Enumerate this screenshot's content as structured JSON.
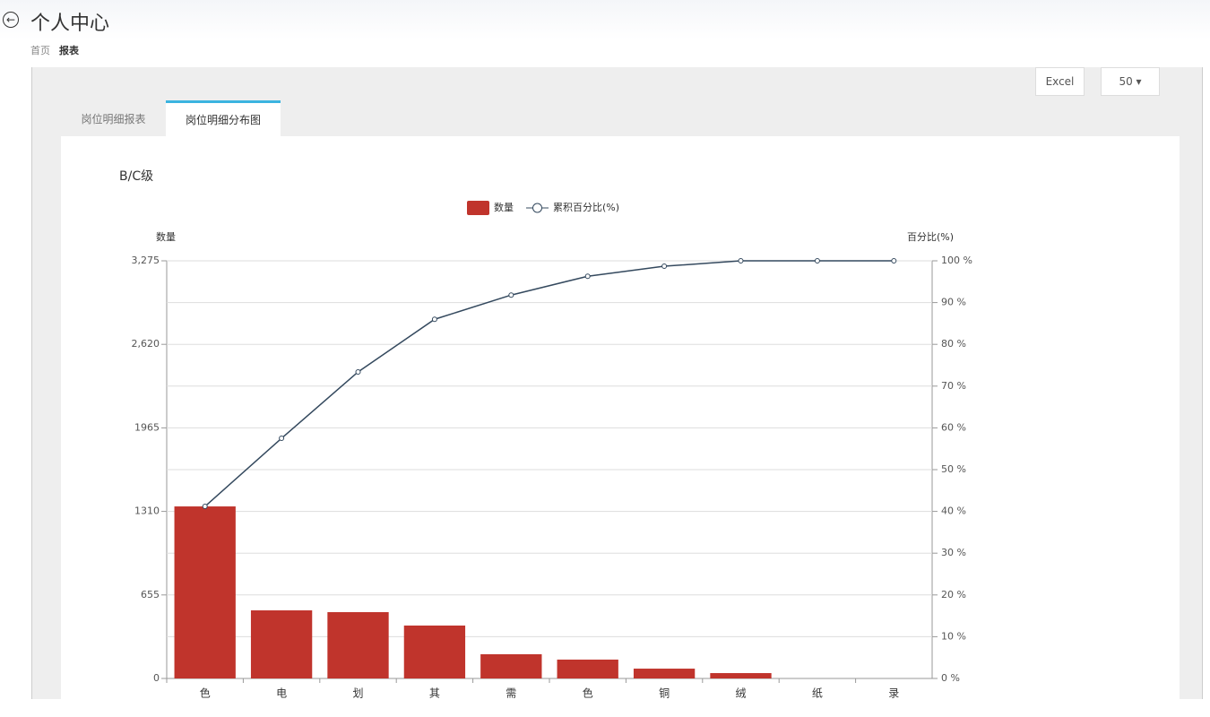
{
  "header": {
    "title": "个人中心",
    "breadcrumb": [
      "首页",
      "报表"
    ]
  },
  "toolbar": {
    "export": "Excel",
    "page_size": "50"
  },
  "tabs": [
    "岗位明细报表",
    "岗位明细分布图"
  ],
  "chart_data": {
    "type": "pareto",
    "title": "B/C级",
    "y_label": "数量",
    "y2_label": "百分比(%)",
    "categories": [
      "色",
      "电",
      "划",
      "其",
      "需",
      "色",
      "铜",
      "绒",
      "纸",
      "录"
    ],
    "series": [
      {
        "name": "数量",
        "type": "bar",
        "color": "#c0342c",
        "values": [
          1349,
          534,
          520,
          415,
          190,
          148,
          77,
          42,
          0,
          0
        ]
      },
      {
        "name": "累积百分比(%)",
        "type": "line",
        "axis": "y2",
        "color": "#34495e",
        "values": [
          41.2,
          57.5,
          73.4,
          86.0,
          91.8,
          96.3,
          98.7,
          100,
          100,
          100
        ]
      }
    ],
    "ylim": [
      0,
      3275
    ],
    "yticks": [
      0,
      655,
      1310,
      1965,
      {
        "value": 2620,
        "label": "2,620"
      },
      {
        "value": 3275,
        "label": "3,275"
      }
    ],
    "y2lim": [
      0,
      100
    ],
    "y2ticks": [
      {
        "value": 0,
        "label": "0 %"
      },
      {
        "value": 10,
        "label": "10 %"
      },
      {
        "value": 20,
        "label": "20 %"
      },
      {
        "value": 30,
        "label": "30 %"
      },
      {
        "value": 40,
        "label": "40 %"
      },
      {
        "value": 50,
        "label": "50 %"
      },
      {
        "value": 60,
        "label": "60 %"
      },
      {
        "value": 70,
        "label": "70 %"
      },
      {
        "value": 80,
        "label": "80 %"
      },
      {
        "value": 90,
        "label": "90 %"
      },
      {
        "value": 100,
        "label": "100 %"
      }
    ],
    "grid": true
  }
}
